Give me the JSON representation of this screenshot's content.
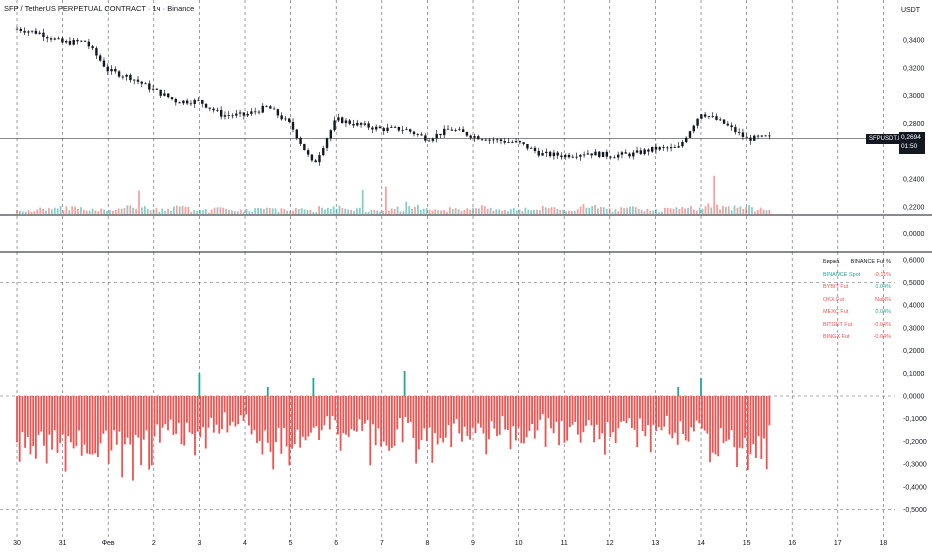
{
  "header": {
    "title": "SFP / TetherUS PERPETUAL CONTRACT · 1ч · Binance",
    "currency": "USDT"
  },
  "price_marker": {
    "symbol": "SFPUSDT.P",
    "price": "0,2694",
    "countdown": "01:50"
  },
  "legend_table": {
    "headers": [
      "Биржа",
      "BINANCE Fut %"
    ],
    "rows": [
      {
        "exchange": "BINANCE Spot",
        "value": "-0.11%",
        "color": "#26a69a"
      },
      {
        "exchange": "BYBIT Fut",
        "value": "0.04%",
        "color": "#ef5350"
      },
      {
        "exchange": "OKX Fut",
        "value": "NaN%",
        "color": "#ef5350"
      },
      {
        "exchange": "MEXC Fut",
        "value": "0.04%",
        "color": "#ef5350"
      },
      {
        "exchange": "BITGET Fut",
        "value": "-0.04%",
        "color": "#ef5350"
      },
      {
        "exchange": "BINGX Fut",
        "value": "-0.04%",
        "color": "#ef5350"
      }
    ]
  },
  "chart_data": [
    {
      "type": "line",
      "pane": "price",
      "ylim": [
        0.2,
        0.36
      ],
      "yticks": [
        "0,3400",
        "0,3200",
        "0,3000",
        "0,2800",
        "0,2400",
        "0,2200"
      ],
      "xticks": [
        "30",
        "31",
        "Фев",
        "2",
        "3",
        "4",
        "5",
        "6",
        "7",
        "8",
        "9",
        "10",
        "11",
        "12",
        "13",
        "14",
        "15",
        "16",
        "17",
        "18"
      ],
      "series": [
        {
          "x": [
            0,
            0.5,
            1,
            1.5,
            2,
            2.5,
            3,
            3.5,
            4,
            4.5,
            5,
            5.5,
            6,
            6.5,
            7,
            7.5,
            8,
            8.5,
            9,
            9.5,
            10,
            10.5,
            11,
            11.5,
            12,
            12.5,
            13,
            13.5,
            14,
            14.5,
            15,
            15.5,
            16,
            16.5
          ],
          "values": [
            0.348,
            0.345,
            0.338,
            0.339,
            0.318,
            0.313,
            0.304,
            0.296,
            0.296,
            0.286,
            0.286,
            0.292,
            0.279,
            0.25,
            0.283,
            0.279,
            0.276,
            0.276,
            0.269,
            0.276,
            0.271,
            0.268,
            0.266,
            0.258,
            0.257,
            0.259,
            0.257,
            0.258,
            0.262,
            0.262,
            0.288,
            0.28,
            0.269,
            0.27
          ]
        }
      ]
    },
    {
      "type": "bar",
      "pane": "volume",
      "note_levels": "relative",
      "values": [
        2,
        3,
        4,
        2,
        3,
        5,
        3,
        4,
        2,
        3,
        2,
        4,
        3,
        2,
        5,
        3,
        2,
        3,
        6,
        2,
        3,
        4,
        2,
        3,
        4,
        2,
        5,
        3,
        4,
        2,
        3,
        4,
        6,
        4,
        3
      ]
    },
    {
      "type": "bar",
      "pane": "funding_diff",
      "ylim": [
        -0.52,
        0.62
      ],
      "yticks": [
        "0,6000",
        "0,5000",
        "0,4000",
        "0,3000",
        "0,2000",
        "0,1000",
        "0,0000",
        "-0,1000",
        "-0,2000",
        "-0,3000",
        "-0,4000",
        "-0,5000"
      ],
      "top_ticks": [
        "0,0000"
      ],
      "series": [
        {
          "name": "",
          "x": [
            0,
            0.5,
            1,
            1.5,
            2,
            2.5,
            3,
            3.5,
            4,
            4.5,
            5,
            5.5,
            6,
            6.5,
            7,
            7.5,
            8,
            8.5,
            9,
            9.5,
            10,
            10.5,
            11,
            11.5,
            12,
            12.5,
            13,
            13.5,
            14,
            14.5,
            15,
            15.5,
            16,
            16.5
          ],
          "values": [
            -0.18,
            -0.22,
            -0.26,
            -0.2,
            -0.24,
            -0.28,
            -0.22,
            -0.14,
            -0.2,
            -0.12,
            -0.1,
            -0.25,
            -0.18,
            -0.15,
            -0.12,
            -0.16,
            -0.18,
            -0.15,
            -0.2,
            -0.16,
            -0.18,
            -0.14,
            -0.16,
            -0.12,
            -0.17,
            -0.15,
            -0.18,
            -0.14,
            -0.12,
            -0.16,
            -0.18,
            -0.2,
            -0.25,
            -0.18
          ]
        },
        {
          "name": "",
          "x": [
            4,
            5.5,
            6.5,
            8.5,
            14.5,
            15
          ],
          "values": [
            0.1,
            0.04,
            0.08,
            0.11,
            0.04,
            0.08
          ]
        }
      ]
    }
  ],
  "colors": {
    "up": "#26a69a",
    "down": "#ef5350",
    "grid": "#131722",
    "line": "#131722"
  }
}
